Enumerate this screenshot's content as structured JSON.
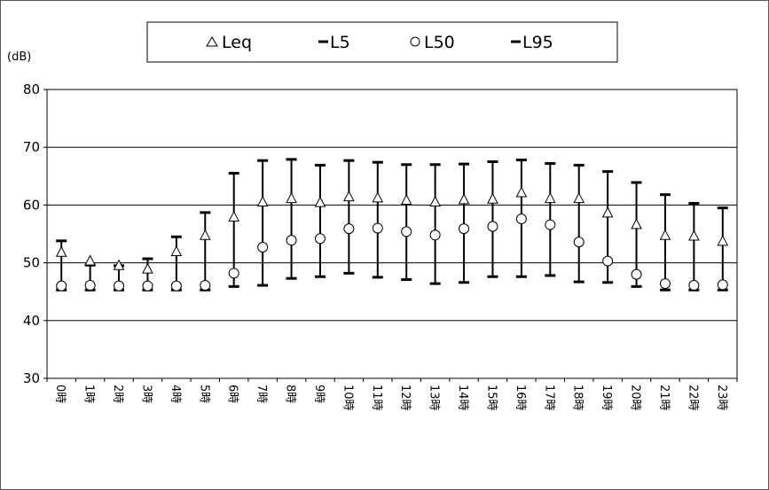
{
  "chart_data": {
    "type": "scatter",
    "ylabel": "(dB)",
    "ylim": [
      30,
      80
    ],
    "yticks": [
      "30",
      "40",
      "50",
      "60",
      "70",
      "80"
    ],
    "grid": true,
    "legend_position": "top",
    "categories": [
      "0時",
      "1時",
      "2時",
      "3時",
      "4時",
      "5時",
      "6時",
      "7時",
      "8時",
      "9時",
      "10時",
      "11時",
      "12時",
      "13時",
      "14時",
      "15時",
      "16時",
      "17時",
      "18時",
      "19時",
      "20時",
      "21時",
      "22時",
      "23時"
    ],
    "series": [
      {
        "name": "Leq",
        "marker": "triangle",
        "values": [
          51.9,
          50.4,
          49.6,
          49.0,
          52.0,
          54.8,
          58.0,
          60.6,
          61.2,
          60.5,
          61.5,
          61.3,
          60.9,
          60.6,
          61.0,
          61.1,
          62.2,
          61.2,
          61.2,
          58.7,
          56.7,
          54.8,
          54.7,
          53.8
        ]
      },
      {
        "name": "L5",
        "marker": "dash",
        "values": [
          53.8,
          49.6,
          49.5,
          50.7,
          54.5,
          58.7,
          65.5,
          67.7,
          67.9,
          66.9,
          67.7,
          67.4,
          67.0,
          67.0,
          67.1,
          67.5,
          67.8,
          67.2,
          66.9,
          65.8,
          63.9,
          61.8,
          60.3,
          59.5
        ]
      },
      {
        "name": "L50",
        "marker": "circle",
        "values": [
          46.0,
          46.1,
          46.0,
          46.0,
          46.0,
          46.1,
          48.2,
          52.7,
          53.9,
          54.2,
          55.9,
          56.0,
          55.4,
          54.8,
          55.9,
          56.3,
          57.6,
          56.6,
          53.6,
          50.3,
          48.0,
          46.4,
          46.1,
          46.2
        ]
      },
      {
        "name": "L95",
        "marker": "dash",
        "values": [
          45.3,
          45.3,
          45.3,
          45.3,
          45.3,
          45.3,
          45.9,
          46.1,
          47.3,
          47.6,
          48.2,
          47.5,
          47.1,
          46.4,
          46.6,
          47.6,
          47.6,
          47.8,
          46.7,
          46.6,
          45.9,
          45.3,
          45.3,
          45.3
        ]
      }
    ]
  }
}
